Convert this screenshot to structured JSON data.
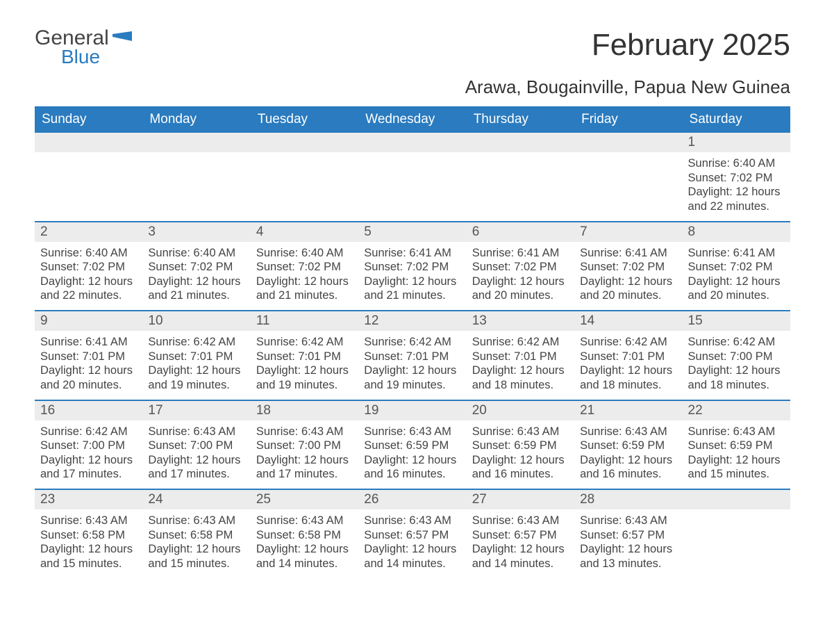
{
  "logo": {
    "word1": "General",
    "word2": "Blue"
  },
  "title": "February 2025",
  "location": "Arawa, Bougainville, Papua New Guinea",
  "colors": {
    "header_bg": "#2a7bbf",
    "header_text": "#ffffff",
    "daynum_bg": "#ececec",
    "body_text": "#444444",
    "week_border": "#2a7bbf",
    "page_bg": "#ffffff"
  },
  "days_of_week": [
    "Sunday",
    "Monday",
    "Tuesday",
    "Wednesday",
    "Thursday",
    "Friday",
    "Saturday"
  ],
  "weeks": [
    [
      null,
      null,
      null,
      null,
      null,
      null,
      {
        "n": "1",
        "sr": "6:40 AM",
        "ss": "7:02 PM",
        "dl": "12 hours and 22 minutes."
      }
    ],
    [
      {
        "n": "2",
        "sr": "6:40 AM",
        "ss": "7:02 PM",
        "dl": "12 hours and 22 minutes."
      },
      {
        "n": "3",
        "sr": "6:40 AM",
        "ss": "7:02 PM",
        "dl": "12 hours and 21 minutes."
      },
      {
        "n": "4",
        "sr": "6:40 AM",
        "ss": "7:02 PM",
        "dl": "12 hours and 21 minutes."
      },
      {
        "n": "5",
        "sr": "6:41 AM",
        "ss": "7:02 PM",
        "dl": "12 hours and 21 minutes."
      },
      {
        "n": "6",
        "sr": "6:41 AM",
        "ss": "7:02 PM",
        "dl": "12 hours and 20 minutes."
      },
      {
        "n": "7",
        "sr": "6:41 AM",
        "ss": "7:02 PM",
        "dl": "12 hours and 20 minutes."
      },
      {
        "n": "8",
        "sr": "6:41 AM",
        "ss": "7:02 PM",
        "dl": "12 hours and 20 minutes."
      }
    ],
    [
      {
        "n": "9",
        "sr": "6:41 AM",
        "ss": "7:01 PM",
        "dl": "12 hours and 20 minutes."
      },
      {
        "n": "10",
        "sr": "6:42 AM",
        "ss": "7:01 PM",
        "dl": "12 hours and 19 minutes."
      },
      {
        "n": "11",
        "sr": "6:42 AM",
        "ss": "7:01 PM",
        "dl": "12 hours and 19 minutes."
      },
      {
        "n": "12",
        "sr": "6:42 AM",
        "ss": "7:01 PM",
        "dl": "12 hours and 19 minutes."
      },
      {
        "n": "13",
        "sr": "6:42 AM",
        "ss": "7:01 PM",
        "dl": "12 hours and 18 minutes."
      },
      {
        "n": "14",
        "sr": "6:42 AM",
        "ss": "7:01 PM",
        "dl": "12 hours and 18 minutes."
      },
      {
        "n": "15",
        "sr": "6:42 AM",
        "ss": "7:00 PM",
        "dl": "12 hours and 18 minutes."
      }
    ],
    [
      {
        "n": "16",
        "sr": "6:42 AM",
        "ss": "7:00 PM",
        "dl": "12 hours and 17 minutes."
      },
      {
        "n": "17",
        "sr": "6:43 AM",
        "ss": "7:00 PM",
        "dl": "12 hours and 17 minutes."
      },
      {
        "n": "18",
        "sr": "6:43 AM",
        "ss": "7:00 PM",
        "dl": "12 hours and 17 minutes."
      },
      {
        "n": "19",
        "sr": "6:43 AM",
        "ss": "6:59 PM",
        "dl": "12 hours and 16 minutes."
      },
      {
        "n": "20",
        "sr": "6:43 AM",
        "ss": "6:59 PM",
        "dl": "12 hours and 16 minutes."
      },
      {
        "n": "21",
        "sr": "6:43 AM",
        "ss": "6:59 PM",
        "dl": "12 hours and 16 minutes."
      },
      {
        "n": "22",
        "sr": "6:43 AM",
        "ss": "6:59 PM",
        "dl": "12 hours and 15 minutes."
      }
    ],
    [
      {
        "n": "23",
        "sr": "6:43 AM",
        "ss": "6:58 PM",
        "dl": "12 hours and 15 minutes."
      },
      {
        "n": "24",
        "sr": "6:43 AM",
        "ss": "6:58 PM",
        "dl": "12 hours and 15 minutes."
      },
      {
        "n": "25",
        "sr": "6:43 AM",
        "ss": "6:58 PM",
        "dl": "12 hours and 14 minutes."
      },
      {
        "n": "26",
        "sr": "6:43 AM",
        "ss": "6:57 PM",
        "dl": "12 hours and 14 minutes."
      },
      {
        "n": "27",
        "sr": "6:43 AM",
        "ss": "6:57 PM",
        "dl": "12 hours and 14 minutes."
      },
      {
        "n": "28",
        "sr": "6:43 AM",
        "ss": "6:57 PM",
        "dl": "12 hours and 13 minutes."
      },
      null
    ]
  ],
  "labels": {
    "sunrise": "Sunrise: ",
    "sunset": "Sunset: ",
    "daylight": "Daylight: "
  }
}
